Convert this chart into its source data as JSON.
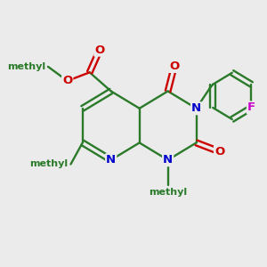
{
  "bg": "#ebebeb",
  "bc": "#2a7a2a",
  "nc": "#0000cc",
  "oc": "#cc0000",
  "fc": "#cc00cc",
  "lw": 1.7,
  "fs": 9.5,
  "fss": 8.0,
  "xlim": [
    0,
    10
  ],
  "ylim": [
    0,
    10
  ]
}
